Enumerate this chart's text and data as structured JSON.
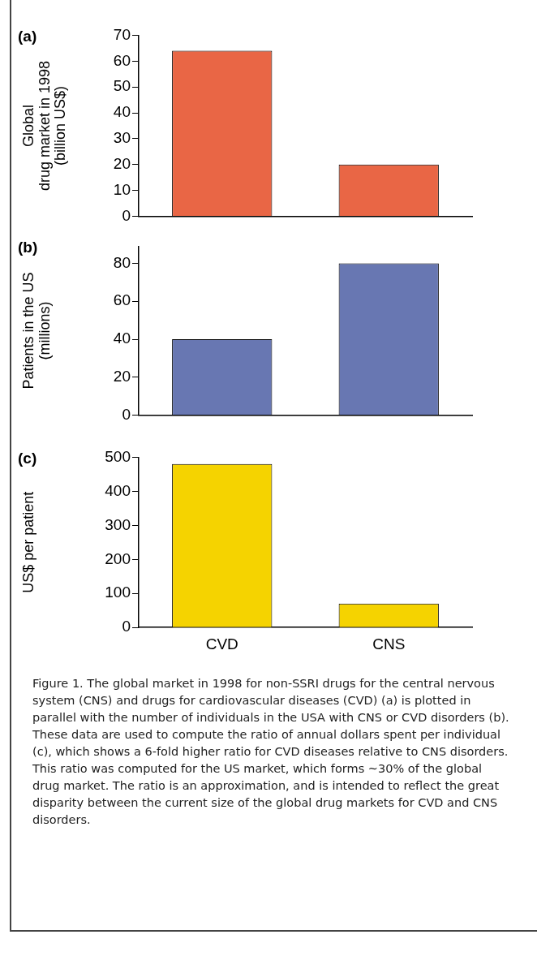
{
  "chart_data": [
    {
      "type": "bar",
      "title": "(a)",
      "ylabel": "Global\ndrug market in 1998\n(billion US$)",
      "categories": [
        null,
        null
      ],
      "values": [
        64,
        20
      ],
      "color": "#e96645",
      "ylim": [
        0,
        70
      ],
      "yticks": [
        0,
        10,
        20,
        30,
        40,
        50,
        60,
        70
      ],
      "tick_labels": "y",
      "grid": false,
      "legend": false
    },
    {
      "type": "bar",
      "title": "(b)",
      "ylabel": "Patients in the US\n(millions)",
      "categories": [
        null,
        null
      ],
      "values": [
        40,
        80
      ],
      "color": "#6877b2",
      "ylim": [
        0,
        89
      ],
      "yticks": [
        0,
        20,
        40,
        60,
        80
      ],
      "tick_labels": "y",
      "grid": false,
      "legend": false
    },
    {
      "type": "bar",
      "title": "(c)",
      "ylabel": "US$ per patient",
      "categories": [
        "CVD",
        "CNS"
      ],
      "values": [
        480,
        70
      ],
      "color": "#f5d300",
      "ylim": [
        0,
        500
      ],
      "yticks": [
        0,
        100,
        200,
        300,
        400,
        500
      ],
      "grid": false,
      "legend": false,
      "annotations": [
        "Figure 1. The global market in 1998 for non-SSRI drugs for the central nervous system (CNS) and drugs for cardiovascular diseases (CVD) (a) is plotted in parallel with the number of individuals in the USA with CNS or CVD disorders (b). These data are used to compute the ratio of annual dollars spent per individual (c), which shows a 6-fold higher ratio for CVD diseases relative to CNS disorders. This ratio was computed for the US market, which forms ~30% of the global drug market. The ratio is an approximation, and is intended to reflect the great disparity between the current size of the global drug markets for CVD and CNS disorders."
      ]
    }
  ]
}
